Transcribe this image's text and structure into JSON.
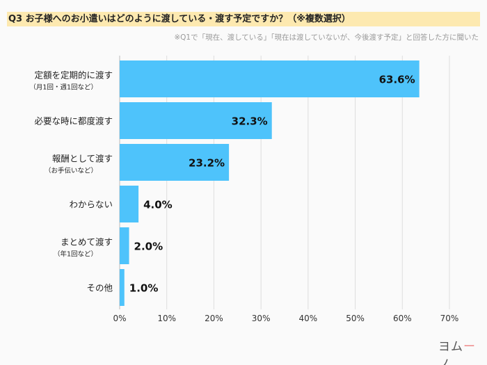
{
  "header": {
    "title": "Q3 お子様へのお小遣いはどのように渡している・渡す予定ですか？（※複数選択）",
    "note": "※Q1で「現在、渡している」「現在は渡していないが、今後渡す予定」と回答した方に聞いた"
  },
  "logo": "ヨムーノ",
  "colors": {
    "bar": "#4ec3fb",
    "title_highlight": "#fde9b0",
    "grid": "#dddddd"
  },
  "chart_data": {
    "type": "bar",
    "orientation": "horizontal",
    "categories": [
      "定額を定期的に渡す",
      "必要な時に都度渡す",
      "報酬として渡す",
      "わからない",
      "まとめて渡す",
      "その他"
    ],
    "sublabels": [
      "（月1回・週1回など）",
      "",
      "（お手伝いなど）",
      "",
      "（年1回など）",
      ""
    ],
    "values": [
      63.6,
      32.3,
      23.2,
      4.0,
      2.0,
      1.0
    ],
    "value_labels": [
      "63.6%",
      "32.3%",
      "23.2%",
      "4.0%",
      "2.0%",
      "1.0%"
    ],
    "xlim": [
      0,
      70
    ],
    "xticks": [
      "0%",
      "10%",
      "20%",
      "30%",
      "40%",
      "50%",
      "60%",
      "70%"
    ],
    "grid": true
  }
}
